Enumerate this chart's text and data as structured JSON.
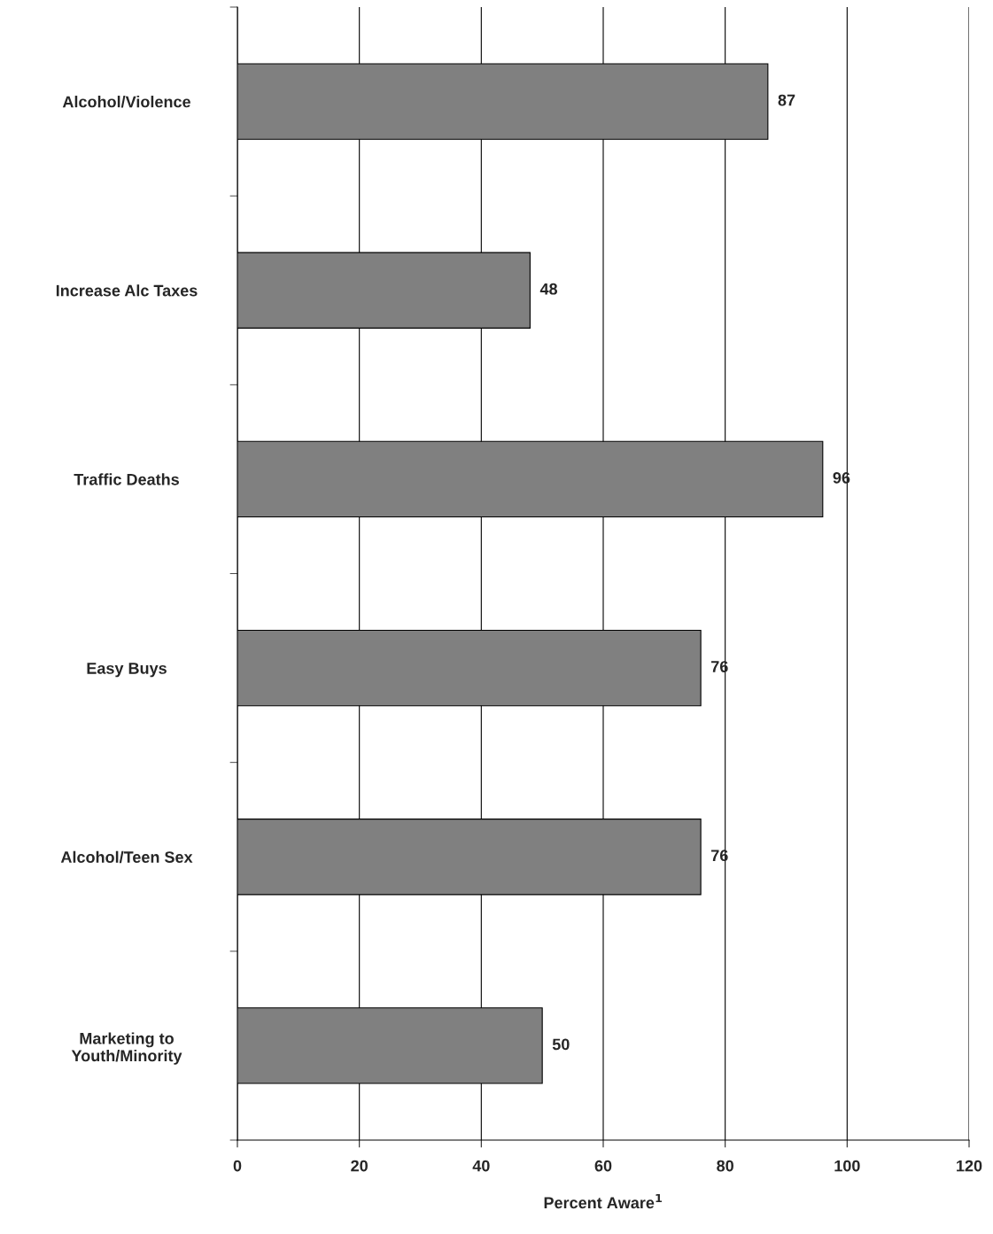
{
  "chart_data": {
    "type": "bar",
    "orientation": "horizontal",
    "categories": [
      "Alcohol/Violence",
      "Increase Alc Taxes",
      "Traffic Deaths",
      "Easy Buys",
      "Alcohol/Teen Sex",
      "Marketing to\nYouth/Minority"
    ],
    "values": [
      87,
      48,
      96,
      76,
      76,
      50
    ],
    "color": "#808080",
    "xlim": [
      0,
      120
    ],
    "xticks": [
      0,
      20,
      40,
      60,
      80,
      100,
      120
    ],
    "xlabel": "Percent Aware$^{1}$",
    "grid": "x",
    "data_labels": true
  }
}
